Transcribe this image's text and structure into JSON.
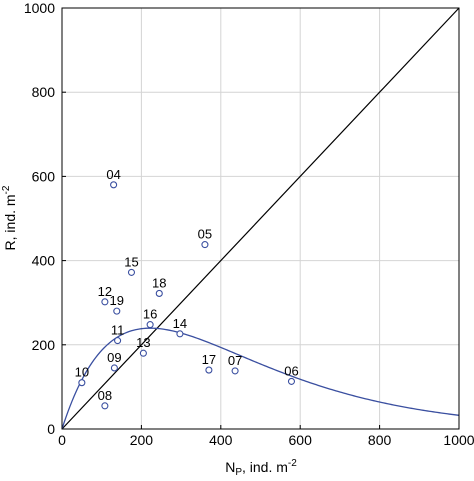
{
  "chart_data": {
    "type": "scatter",
    "xlabel": {
      "main": "N",
      "sub": "P",
      "rest": ", ind. m",
      "sup": "-2"
    },
    "ylabel": {
      "main": "R, ind. m",
      "sup": "-2"
    },
    "xlim": [
      0,
      1000
    ],
    "ylim": [
      0,
      1000
    ],
    "xticks": [
      "0",
      "200",
      "400",
      "600",
      "800",
      "1000"
    ],
    "yticks": [
      "0",
      "200",
      "400",
      "600",
      "800",
      "1000"
    ],
    "grid": true,
    "colors": {
      "points": "#3a4fa0",
      "curve": "#3a4fa0",
      "identity_line": "#000000",
      "grid": "#d4d4d4"
    },
    "points": [
      {
        "label": "04",
        "x": 130,
        "y": 580
      },
      {
        "label": "05",
        "x": 360,
        "y": 438
      },
      {
        "label": "15",
        "x": 175,
        "y": 372
      },
      {
        "label": "18",
        "x": 245,
        "y": 322
      },
      {
        "label": "12",
        "x": 108,
        "y": 302
      },
      {
        "label": "19",
        "x": 138,
        "y": 280
      },
      {
        "label": "16",
        "x": 222,
        "y": 248
      },
      {
        "label": "14",
        "x": 297,
        "y": 226
      },
      {
        "label": "11",
        "x": 140,
        "y": 210
      },
      {
        "label": "13",
        "x": 205,
        "y": 180
      },
      {
        "label": "09",
        "x": 132,
        "y": 145
      },
      {
        "label": "17",
        "x": 370,
        "y": 140
      },
      {
        "label": "07",
        "x": 436,
        "y": 138
      },
      {
        "label": "06",
        "x": 578,
        "y": 113
      },
      {
        "label": "10",
        "x": 50,
        "y": 110
      },
      {
        "label": "08",
        "x": 108,
        "y": 55
      }
    ],
    "reference_line": {
      "type": "identity",
      "x": [
        0,
        1000
      ],
      "y": [
        0,
        1000
      ]
    },
    "fitted_curve": {
      "type": "ricker",
      "a": 2.93,
      "b": 0.0045
    }
  }
}
